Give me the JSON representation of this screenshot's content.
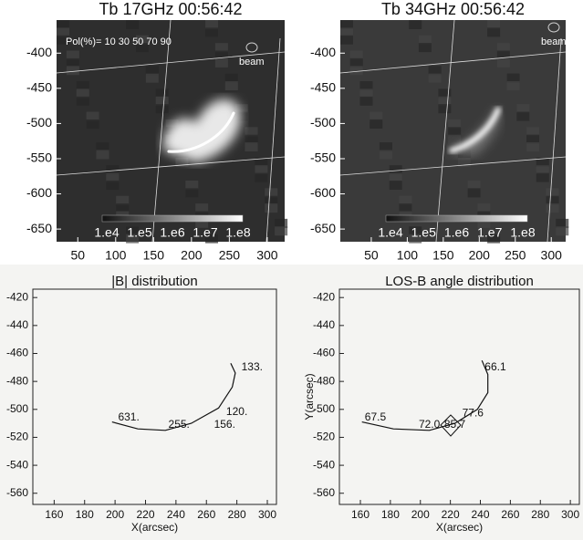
{
  "chart_data": [
    {
      "type": "image",
      "title": "Tb 17GHz 00:56:42",
      "annotations": [
        "Pol(%)= 10 30 50 70 90",
        "beam"
      ],
      "colorbar_labels": [
        "1.e4",
        "1.e5",
        "1.e6",
        "1.e7",
        "1.e8"
      ],
      "xlim": [
        22,
        323
      ],
      "ylim": [
        -668,
        -353
      ],
      "xticks": [
        50,
        100,
        150,
        200,
        250,
        300
      ],
      "yticks": [
        -400,
        -450,
        -500,
        -550,
        -600,
        -650
      ]
    },
    {
      "type": "image",
      "title": "Tb 34GHz 00:56:42",
      "annotations": [
        "beam"
      ],
      "colorbar_labels": [
        "1.e4",
        "1.e5",
        "1.e6",
        "1.e7",
        "1.e8"
      ],
      "xlim": [
        7,
        320
      ],
      "ylim": [
        -668,
        -353
      ],
      "xticks": [
        50,
        100,
        150,
        200,
        250,
        300
      ],
      "yticks": [
        -400,
        -450,
        -500,
        -550,
        -600,
        -650
      ]
    },
    {
      "type": "line",
      "title": "|B| distribution",
      "xlabel": "X(arcsec)",
      "color": "#111111",
      "x": [
        198,
        215,
        233,
        250,
        268,
        277,
        279,
        276
      ],
      "values": [
        -509,
        -514,
        -515,
        -510,
        -499,
        -484,
        -474,
        -467
      ],
      "point_labels": [
        {
          "text": "631.",
          "x": 209,
          "y": -506
        },
        {
          "text": "255.",
          "x": 242,
          "y": -511
        },
        {
          "text": "156.",
          "x": 272,
          "y": -511
        },
        {
          "text": "120.",
          "x": 280,
          "y": -502
        },
        {
          "text": "133.",
          "x": 290,
          "y": -470
        }
      ],
      "xlim": [
        146,
        306
      ],
      "ylim": [
        -568,
        -414
      ],
      "xticks": [
        160,
        180,
        200,
        220,
        240,
        260,
        280,
        300
      ],
      "yticks": [
        -420,
        -440,
        -460,
        -480,
        -500,
        -520,
        -540,
        -560
      ]
    },
    {
      "type": "line",
      "title": "LOS-B angle distribution",
      "xlabel": "X(arcsec)",
      "ylabel": "Y(arcsec)",
      "color": "#111111",
      "x": [
        161,
        182,
        206,
        223,
        238,
        245,
        245,
        241
      ],
      "values": [
        -509,
        -514,
        -515,
        -510,
        -500,
        -488,
        -475,
        -465
      ],
      "point_labels": [
        {
          "text": "67.5",
          "x": 170,
          "y": -506
        },
        {
          "text": "72.0",
          "x": 206,
          "y": -511
        },
        {
          "text": "85.7",
          "x": 223,
          "y": -511
        },
        {
          "text": "77.6",
          "x": 235,
          "y": -503
        },
        {
          "text": "66.1",
          "x": 250,
          "y": -470
        }
      ],
      "xlim": [
        146,
        306
      ],
      "ylim": [
        -568,
        -414
      ],
      "xticks": [
        160,
        180,
        200,
        220,
        240,
        260,
        280,
        300
      ],
      "yticks": [
        -420,
        -440,
        -460,
        -480,
        -500,
        -520,
        -540,
        -560
      ]
    }
  ]
}
